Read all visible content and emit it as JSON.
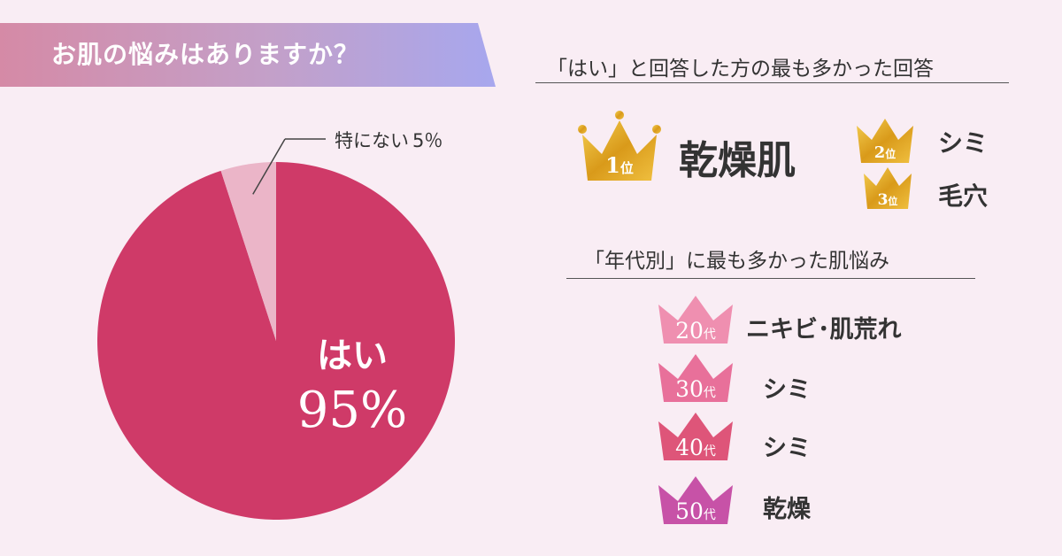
{
  "header": {
    "title": "お肌の悩みはありますか？"
  },
  "chart_data": {
    "type": "pie",
    "slices": [
      {
        "label": "はい",
        "value": 95,
        "value_text": "95%",
        "color": "#cf3a68"
      },
      {
        "label": "特にない",
        "value": 5,
        "value_text": "5％",
        "color": "#ebb5c8"
      }
    ]
  },
  "ranking": {
    "title": "「はい」と回答した方の最も多かった回答",
    "items": [
      {
        "rank": "1",
        "rank_suffix": "位",
        "answer": "乾燥肌",
        "crown_color": "#e0a41c"
      },
      {
        "rank": "2",
        "rank_suffix": "位",
        "answer": "シミ",
        "crown_color": "#e0a41c"
      },
      {
        "rank": "3",
        "rank_suffix": "位",
        "answer": "毛穴",
        "crown_color": "#e0a41c"
      }
    ]
  },
  "age": {
    "title": "「年代別」に最も多かった肌悩み",
    "items": [
      {
        "age": "20",
        "age_suffix": "代",
        "answer": "ニキビ･肌荒れ",
        "crown_color": "#ef8fb0"
      },
      {
        "age": "30",
        "age_suffix": "代",
        "answer": "シミ",
        "crown_color": "#e8709a"
      },
      {
        "age": "40",
        "age_suffix": "代",
        "answer": "シミ",
        "crown_color": "#de5579"
      },
      {
        "age": "50",
        "age_suffix": "代",
        "answer": "乾燥",
        "crown_color": "#c752a7"
      }
    ]
  }
}
